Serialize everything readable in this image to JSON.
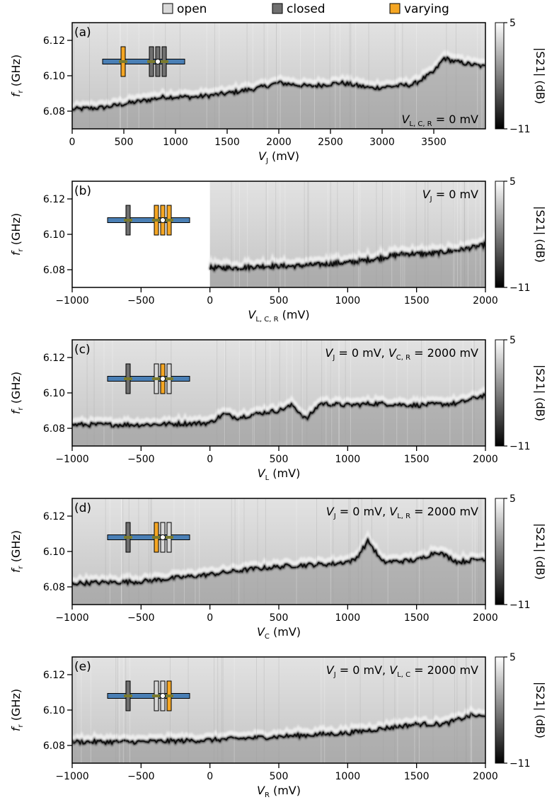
{
  "legend": {
    "items": [
      {
        "label": "open",
        "color": "#d9d9d9"
      },
      {
        "label": "closed",
        "color": "#707070"
      },
      {
        "label": "varying",
        "color": "#f5a623"
      }
    ]
  },
  "colors": {
    "gate_blue": "#4a7fb5",
    "gate_olive": "#7b7b2e",
    "open": "#d9d9d9",
    "closed": "#707070",
    "varying": "#f5a623"
  },
  "chart_data": [
    {
      "type": "heatmap",
      "panel_label": "(a)",
      "xlabel": {
        "main": "V",
        "sub": "J",
        "unit": " (mV)"
      },
      "ylabel": {
        "main": "f",
        "sub": "r",
        "unit": " (GHz)"
      },
      "xlim": [
        0,
        4000
      ],
      "ylim": [
        6.07,
        6.13
      ],
      "data_xmin": 0,
      "xticks": [
        0,
        500,
        1000,
        1500,
        2000,
        2500,
        3000,
        3500
      ],
      "yticks": [
        6.08,
        6.1,
        6.12
      ],
      "colorbar": {
        "label": "|S21| (dB)",
        "min": -11,
        "max": 5,
        "ticks": [
          5,
          -11
        ]
      },
      "annotation": {
        "main": "V",
        "sub": "L, C, R",
        "rest": " =  0 mV"
      },
      "gates": [
        "varying",
        "closed",
        "closed",
        "closed"
      ],
      "resonance": {
        "x": [
          0,
          300,
          600,
          900,
          1200,
          1500,
          1800,
          2000,
          2300,
          2600,
          2900,
          3100,
          3300,
          3500,
          3600,
          3700,
          3800,
          4000
        ],
        "y": [
          6.081,
          6.082,
          6.085,
          6.088,
          6.088,
          6.09,
          6.093,
          6.096,
          6.094,
          6.096,
          6.093,
          6.094,
          6.095,
          6.102,
          6.11,
          6.108,
          6.107,
          6.105
        ]
      }
    },
    {
      "type": "heatmap",
      "panel_label": "(b)",
      "xlabel": {
        "main": "V",
        "sub": "L, C, R",
        "unit": " (mV)"
      },
      "ylabel": {
        "main": "f",
        "sub": "r",
        "unit": " (GHz)"
      },
      "xlim": [
        -1000,
        2000
      ],
      "ylim": [
        6.07,
        6.13
      ],
      "data_xmin": 0,
      "xticks": [
        -1000,
        -500,
        0,
        500,
        1000,
        1500,
        2000
      ],
      "yticks": [
        6.08,
        6.1,
        6.12
      ],
      "colorbar": {
        "label": "|S21| (dB)",
        "min": -11,
        "max": 5,
        "ticks": [
          5,
          -11
        ]
      },
      "annotation": {
        "main": "V",
        "sub": "J",
        "rest": " =  0 mV"
      },
      "gates": [
        "closed",
        "varying",
        "varying",
        "varying"
      ],
      "resonance": {
        "x": [
          0,
          200,
          400,
          600,
          800,
          1000,
          1200,
          1400,
          1600,
          1800,
          2000
        ],
        "y": [
          6.081,
          6.081,
          6.082,
          6.082,
          6.083,
          6.084,
          6.086,
          6.089,
          6.089,
          6.091,
          6.094
        ]
      }
    },
    {
      "type": "heatmap",
      "panel_label": "(c)",
      "xlabel": {
        "main": "V",
        "sub": "L",
        "unit": " (mV)"
      },
      "ylabel": {
        "main": "f",
        "sub": "r",
        "unit": " (GHz)"
      },
      "xlim": [
        -1000,
        2000
      ],
      "ylim": [
        6.07,
        6.13
      ],
      "data_xmin": -1000,
      "xticks": [
        -1000,
        -500,
        0,
        500,
        1000,
        1500,
        2000
      ],
      "yticks": [
        6.08,
        6.1,
        6.12
      ],
      "colorbar": {
        "label": "|S21| (dB)",
        "min": -11,
        "max": 5,
        "ticks": [
          5,
          -11
        ]
      },
      "annotation": {
        "main": "V",
        "sub": "J",
        "rest": " =  0 mV, ",
        "main2": "V",
        "sub2": "C, R",
        "rest2": " =  2000 mV"
      },
      "gates": [
        "closed",
        "open",
        "varying",
        "open"
      ],
      "resonance": {
        "x": [
          -1000,
          -500,
          0,
          100,
          200,
          400,
          500,
          600,
          700,
          800,
          1000,
          1200,
          1500,
          1800,
          2000
        ],
        "y": [
          6.082,
          6.082,
          6.083,
          6.088,
          6.086,
          6.089,
          6.09,
          6.093,
          6.085,
          6.094,
          6.093,
          6.094,
          6.093,
          6.094,
          6.099
        ]
      }
    },
    {
      "type": "heatmap",
      "panel_label": "(d)",
      "xlabel": {
        "main": "V",
        "sub": "C",
        "unit": " (mV)"
      },
      "ylabel": {
        "main": "f",
        "sub": "r",
        "unit": " (GHz)"
      },
      "xlim": [
        -1000,
        2000
      ],
      "ylim": [
        6.07,
        6.13
      ],
      "data_xmin": -1000,
      "xticks": [
        -1000,
        -500,
        0,
        500,
        1000,
        1500,
        2000
      ],
      "yticks": [
        6.08,
        6.1,
        6.12
      ],
      "colorbar": {
        "label": "|S21| (dB)",
        "min": -11,
        "max": 5,
        "ticks": [
          5,
          -11
        ]
      },
      "annotation": {
        "main": "V",
        "sub": "J",
        "rest": " =  0 mV, ",
        "main2": "V",
        "sub2": "L, R",
        "rest2": " =  2000 mV"
      },
      "gates": [
        "closed",
        "varying",
        "open",
        "open"
      ],
      "resonance": {
        "x": [
          -1000,
          -500,
          0,
          300,
          600,
          900,
          1050,
          1150,
          1250,
          1500,
          1650,
          1800,
          2000
        ],
        "y": [
          6.082,
          6.083,
          6.087,
          6.09,
          6.092,
          6.093,
          6.095,
          6.106,
          6.094,
          6.095,
          6.1,
          6.094,
          6.096
        ]
      }
    },
    {
      "type": "heatmap",
      "panel_label": "(e)",
      "xlabel": {
        "main": "V",
        "sub": "R",
        "unit": " (mV)"
      },
      "ylabel": {
        "main": "f",
        "sub": "r",
        "unit": " (GHz)"
      },
      "xlim": [
        -1000,
        2000
      ],
      "ylim": [
        6.07,
        6.13
      ],
      "data_xmin": -1000,
      "xticks": [
        -1000,
        -500,
        0,
        500,
        1000,
        1500,
        2000
      ],
      "yticks": [
        6.08,
        6.1,
        6.12
      ],
      "colorbar": {
        "label": "|S21| (dB)",
        "min": -11,
        "max": 5,
        "ticks": [
          5,
          -11
        ]
      },
      "annotation": {
        "main": "V",
        "sub": "J",
        "rest": " =  0 mV, ",
        "main2": "V",
        "sub2": "L, C",
        "rest2": " =  2000 mV"
      },
      "gates": [
        "closed",
        "open",
        "open",
        "varying"
      ],
      "resonance": {
        "x": [
          -1000,
          -500,
          0,
          500,
          1000,
          1300,
          1500,
          1700,
          1900,
          2000
        ],
        "y": [
          6.082,
          6.082,
          6.083,
          6.085,
          6.087,
          6.09,
          6.092,
          6.092,
          6.097,
          6.096
        ]
      }
    }
  ]
}
